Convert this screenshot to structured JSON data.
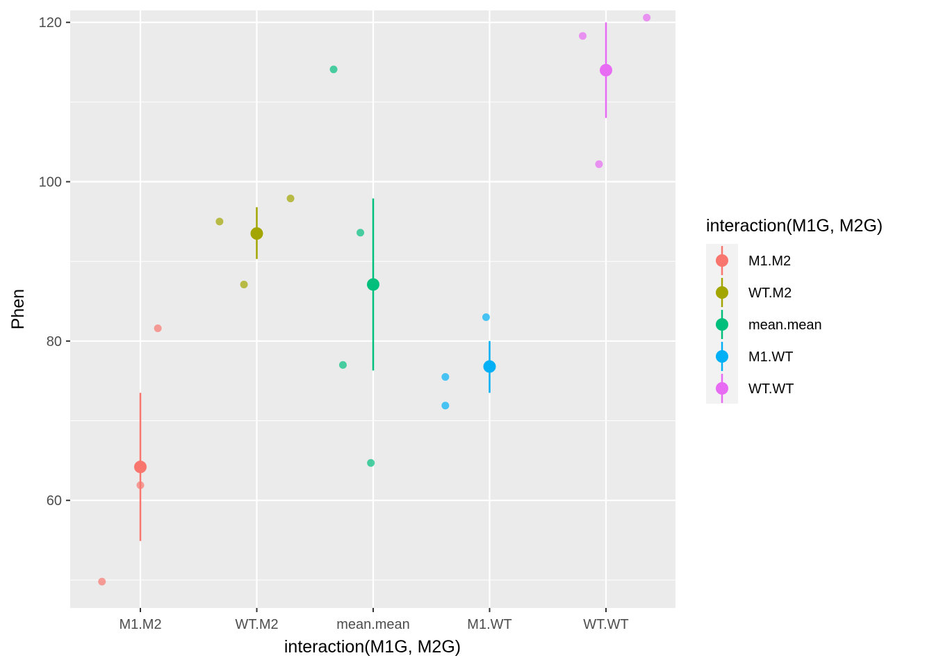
{
  "chart_data": {
    "type": "scatter",
    "title": "",
    "xlabel": "interaction(M1G, M2G)",
    "ylabel": "Phen",
    "categories": [
      "M1.M2",
      "WT.M2",
      "mean.mean",
      "M1.WT",
      "WT.WT"
    ],
    "ylim": [
      46.5,
      121.5
    ],
    "yticks": [
      60,
      80,
      100,
      120
    ],
    "grid": true,
    "legend": {
      "title": "interaction(M1G, M2G)",
      "position": "right",
      "entries": [
        "M1.M2",
        "WT.M2",
        "mean.mean",
        "M1.WT",
        "WT.WT"
      ]
    },
    "colors": {
      "M1.M2": "#F8766D",
      "WT.M2": "#A3A500",
      "mean.mean": "#00BF7D",
      "M1.WT": "#00B0F6",
      "WT.WT": "#E76BF3"
    },
    "series": [
      {
        "name": "M1.M2",
        "points": [
          {
            "x": 0.67,
            "y": 49.8
          },
          {
            "x": 1.0,
            "y": 61.9
          },
          {
            "x": 1.15,
            "y": 81.6
          }
        ],
        "mean": 64.2,
        "lower": 54.9,
        "upper": 73.5
      },
      {
        "name": "WT.M2",
        "points": [
          {
            "x": 1.68,
            "y": 95.0
          },
          {
            "x": 1.89,
            "y": 87.1
          },
          {
            "x": 2.29,
            "y": 97.9
          }
        ],
        "mean": 93.5,
        "lower": 90.3,
        "upper": 96.8
      },
      {
        "name": "mean.mean",
        "points": [
          {
            "x": 2.66,
            "y": 114.1
          },
          {
            "x": 2.89,
            "y": 93.6
          },
          {
            "x": 2.74,
            "y": 77.0
          },
          {
            "x": 2.98,
            "y": 64.7
          }
        ],
        "mean": 87.1,
        "lower": 76.3,
        "upper": 97.9
      },
      {
        "name": "M1.WT",
        "points": [
          {
            "x": 3.97,
            "y": 83.0
          },
          {
            "x": 3.62,
            "y": 75.5
          },
          {
            "x": 3.62,
            "y": 71.9
          }
        ],
        "mean": 76.8,
        "lower": 73.5,
        "upper": 80.0
      },
      {
        "name": "WT.WT",
        "points": [
          {
            "x": 4.8,
            "y": 118.3
          },
          {
            "x": 5.35,
            "y": 120.6
          },
          {
            "x": 4.94,
            "y": 102.2
          }
        ],
        "mean": 114.0,
        "lower": 108.0,
        "upper": 120.0
      }
    ]
  }
}
